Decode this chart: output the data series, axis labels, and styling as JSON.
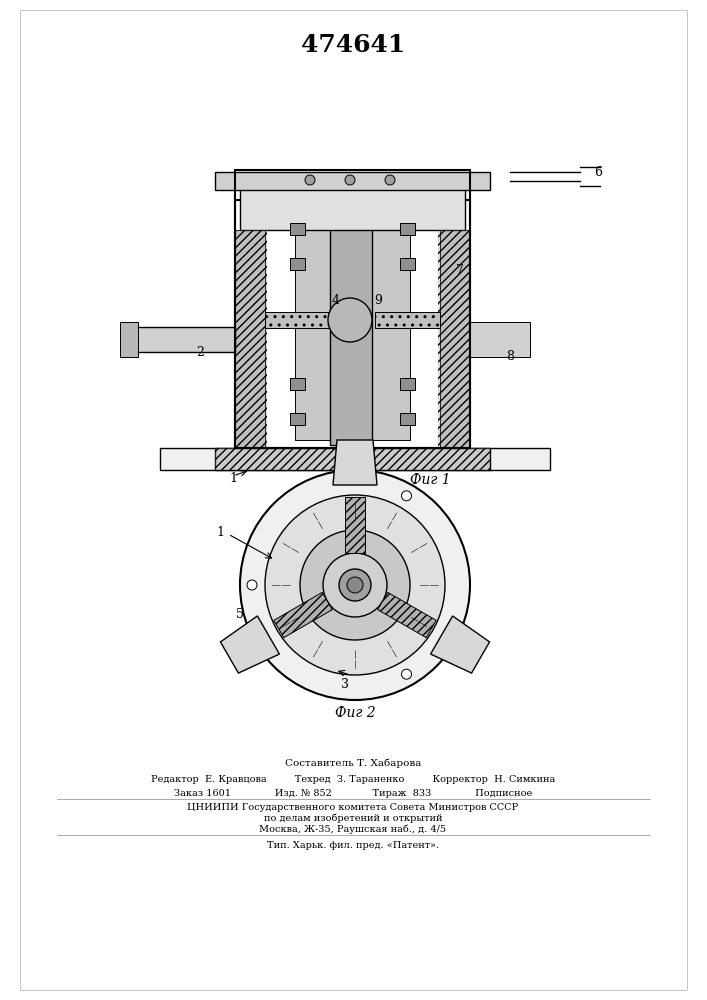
{
  "patent_number": "474641",
  "background_color": "#ffffff",
  "line_color": "#000000",
  "hatch_color": "#000000",
  "fig1_label": "Фиг 1",
  "fig2_label": "Фиг 2",
  "footer_line1": "Составитель Т. Хабарова",
  "footer_line2": "Редактор  Е. Кравцова         Техред  З. Тараненко         Корректор  Н. Симкина",
  "footer_line3": "Заказ 1601              Изд. № 852             Тираж  833              Подписное",
  "footer_line4": "ЦНИИПИ Государственного комитета Совета Министров СССР",
  "footer_line5": "по делам изобретений и открытий",
  "footer_line6": "Москва, Ж-35, Раушская наб., д. 4/5",
  "footer_separator": "─────────────────────────────────────────────────────────────",
  "footer_line7": "Тип. Харьк. фил. пред. «Патент»."
}
